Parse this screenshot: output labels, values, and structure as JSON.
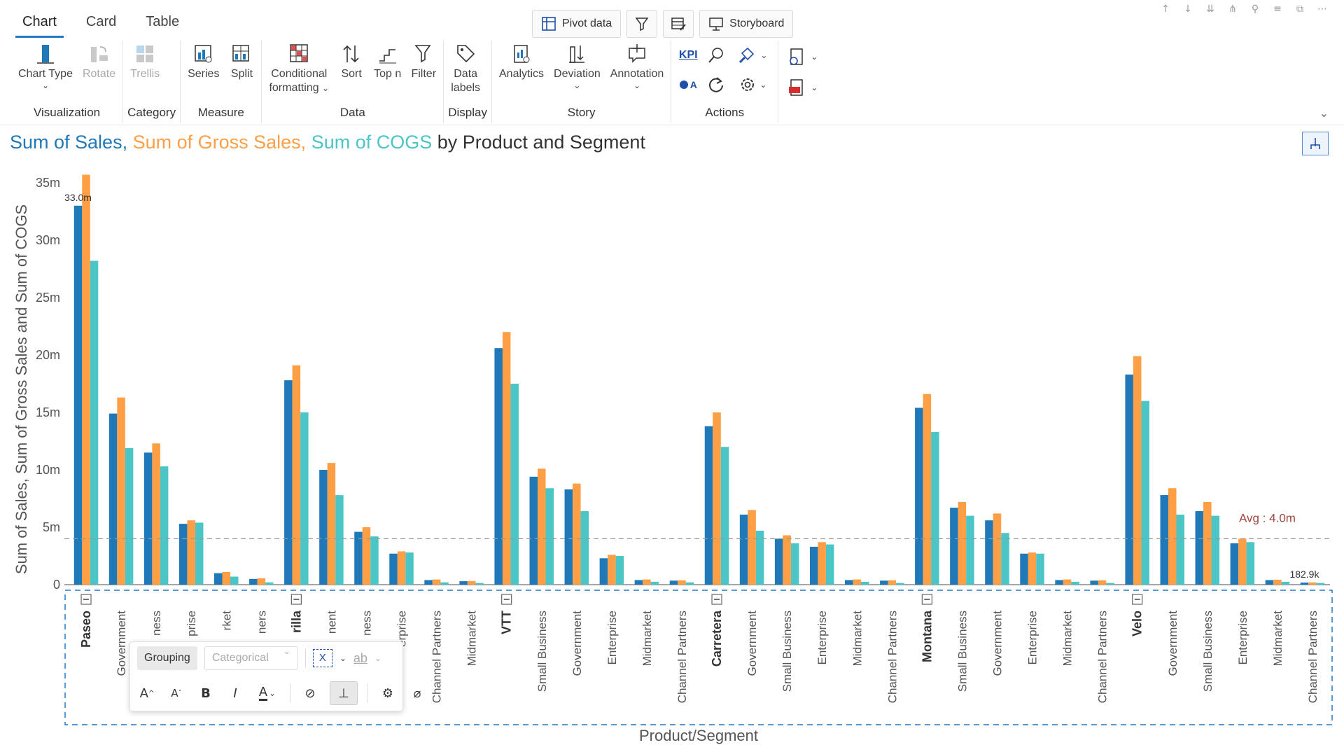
{
  "tabs": [
    {
      "label": "Chart",
      "active": true
    },
    {
      "label": "Card",
      "active": false
    },
    {
      "label": "Table",
      "active": false
    }
  ],
  "top_buttons": {
    "pivot": "Pivot data",
    "storyboard": "Storyboard"
  },
  "ribbon": {
    "visualization": {
      "label": "Visualization",
      "chart_type": "Chart Type",
      "rotate": "Rotate"
    },
    "category": {
      "label": "Category",
      "trellis": "Trellis"
    },
    "measure": {
      "label": "Measure",
      "series": "Series",
      "split": "Split"
    },
    "data": {
      "label": "Data",
      "conditional": "Conditional",
      "formatting": "formatting",
      "sort": "Sort",
      "topn": "Top n",
      "filter": "Filter"
    },
    "display": {
      "label": "Display",
      "data_labels_1": "Data",
      "data_labels_2": "labels"
    },
    "story": {
      "label": "Story",
      "analytics": "Analytics",
      "deviation": "Deviation",
      "annotation": "Annotation"
    },
    "actions": {
      "label": "Actions",
      "kpi": "KPI",
      "a_label": "A"
    }
  },
  "title": {
    "part1": "Sum of Sales,",
    "part2": "Sum of Gross Sales,",
    "part3": "Sum of COGS",
    "part4": "by Product and Segment"
  },
  "floating_toolbar": {
    "grouping": "Grouping",
    "categorical": "Categorical",
    "x": "X",
    "ab": "ab",
    "bold": "B",
    "italic": "I"
  },
  "colors": {
    "sales": "#1f78b8",
    "gross": "#ff9f45",
    "cogs": "#4cc5c7",
    "accent": "#1f78c8"
  },
  "chart_data": {
    "type": "bar",
    "title": "Sum of Sales, Sum of Gross Sales, Sum of COGS by Product and Segment",
    "xlabel": "Product/Segment",
    "ylabel": "Sum of Sales, Sum of Gross Sales and Sum of COGS",
    "ylim": [
      0,
      35000000
    ],
    "yticks": [
      "0",
      "5m",
      "10m",
      "15m",
      "20m",
      "25m",
      "30m",
      "35m"
    ],
    "categories": [
      {
        "product": "Paseo",
        "label": "Paseo",
        "is_product": true
      },
      {
        "product": "Paseo",
        "label": "Government"
      },
      {
        "product": "Paseo",
        "label": "ness"
      },
      {
        "product": "Paseo",
        "label": "prise"
      },
      {
        "product": "Paseo",
        "label": "rket"
      },
      {
        "product": "Paseo",
        "label": "ners"
      },
      {
        "product": "Amarilla",
        "label": "rilla",
        "is_product": true
      },
      {
        "product": "Amarilla",
        "label": "nent"
      },
      {
        "product": "Amarilla",
        "label": "ness"
      },
      {
        "product": "Amarilla",
        "label": "erprise"
      },
      {
        "product": "Amarilla",
        "label": "Channel Partners"
      },
      {
        "product": "Amarilla",
        "label": "Midmarket"
      },
      {
        "product": "VTT",
        "label": "VTT",
        "is_product": true
      },
      {
        "product": "VTT",
        "label": "Small Business"
      },
      {
        "product": "VTT",
        "label": "Government"
      },
      {
        "product": "VTT",
        "label": "Enterprise"
      },
      {
        "product": "VTT",
        "label": "Midmarket"
      },
      {
        "product": "VTT",
        "label": "Channel Partners"
      },
      {
        "product": "Carretera",
        "label": "Carretera",
        "is_product": true
      },
      {
        "product": "Carretera",
        "label": "Government"
      },
      {
        "product": "Carretera",
        "label": "Small Business"
      },
      {
        "product": "Carretera",
        "label": "Enterprise"
      },
      {
        "product": "Carretera",
        "label": "Midmarket"
      },
      {
        "product": "Carretera",
        "label": "Channel Partners"
      },
      {
        "product": "Montana",
        "label": "Montana",
        "is_product": true
      },
      {
        "product": "Montana",
        "label": "Small Business"
      },
      {
        "product": "Montana",
        "label": "Government"
      },
      {
        "product": "Montana",
        "label": "Enterprise"
      },
      {
        "product": "Montana",
        "label": "Midmarket"
      },
      {
        "product": "Montana",
        "label": "Channel Partners"
      },
      {
        "product": "Velo",
        "label": "Velo",
        "is_product": true
      },
      {
        "product": "Velo",
        "label": "Government"
      },
      {
        "product": "Velo",
        "label": "Small Business"
      },
      {
        "product": "Velo",
        "label": "Enterprise"
      },
      {
        "product": "Velo",
        "label": "Midmarket"
      },
      {
        "product": "Velo",
        "label": "Channel Partners"
      }
    ],
    "series": [
      {
        "values": [
          33000000,
          14900000,
          11500000,
          5300000,
          1000000,
          500000,
          17800000,
          10000000,
          4600000,
          2700000,
          400000,
          300000,
          20600000,
          9400000,
          8300000,
          2300000,
          400000,
          350000,
          13800000,
          6100000,
          4000000,
          3300000,
          400000,
          350000,
          15400000,
          6700000,
          5600000,
          2700000,
          400000,
          350000,
          18300000,
          7800000,
          6400000,
          3600000,
          400000,
          182900
        ]
      },
      {
        "values": [
          35700000,
          16300000,
          12300000,
          5600000,
          1100000,
          550000,
          19100000,
          10600000,
          5000000,
          2900000,
          450000,
          320000,
          22000000,
          10100000,
          8800000,
          2600000,
          450000,
          380000,
          15000000,
          6500000,
          4300000,
          3700000,
          450000,
          380000,
          16600000,
          7200000,
          6200000,
          2800000,
          450000,
          380000,
          19900000,
          8400000,
          7200000,
          4000000,
          430000,
          200000
        ]
      },
      {
        "values": [
          28200000,
          11900000,
          10300000,
          5400000,
          700000,
          200000,
          15000000,
          7800000,
          4200000,
          2800000,
          200000,
          150000,
          17500000,
          8400000,
          6400000,
          2500000,
          250000,
          200000,
          12000000,
          4700000,
          3600000,
          3500000,
          250000,
          150000,
          13300000,
          6000000,
          4500000,
          2700000,
          250000,
          150000,
          16000000,
          6100000,
          6000000,
          3700000,
          250000,
          150000
        ]
      }
    ],
    "data_labels": [
      {
        "series": 0,
        "index": 0,
        "text": "33.0m"
      },
      {
        "series": 0,
        "index": 35,
        "text": "182.9k"
      }
    ],
    "reference_line": {
      "value": 4000000,
      "label": "Avg : 4.0m"
    }
  }
}
